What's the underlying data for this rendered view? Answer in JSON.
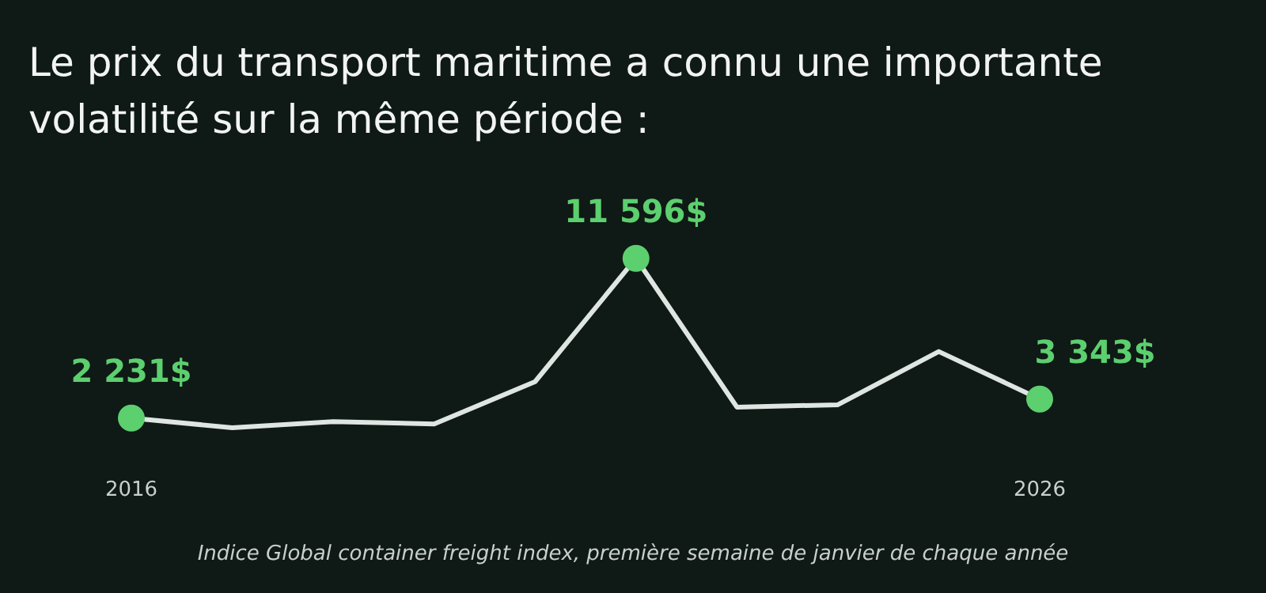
{
  "chart_data": {
    "type": "line",
    "title": "Le prix du transport maritime a connu une importante volatilité sur la même période :",
    "categories": [
      "2016",
      null,
      null,
      null,
      null,
      null,
      null,
      null,
      null,
      "2026"
    ],
    "series": [
      {
        "color": "#dfe6e2",
        "values": [
          2231,
          1660,
          2020,
          1880,
          4360,
          11596,
          2870,
          3010,
          6130,
          3343
        ],
        "value_labels": [
          "2 231$",
          null,
          null,
          null,
          null,
          "11 596$",
          null,
          null,
          null,
          "3 343$"
        ]
      }
    ],
    "tick_labels": "x",
    "legend": false,
    "line_style": "solid",
    "annotations": [
      "Indice Global container freight index, première semaine de janvier de chaque année"
    ]
  }
}
